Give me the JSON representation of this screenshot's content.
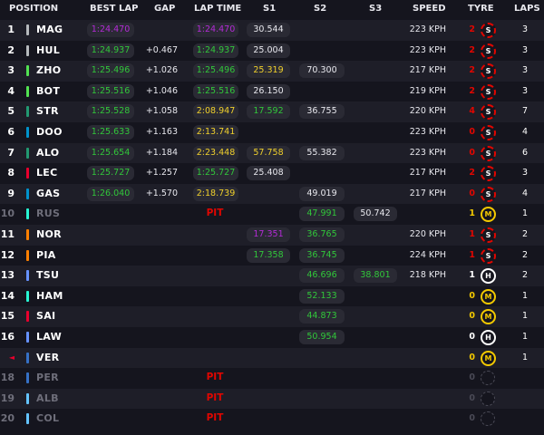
{
  "header": {
    "position": "POSITION",
    "best_lap": "BEST LAP",
    "gap": "GAP",
    "lap_time": "LAP TIME",
    "s1": "S1",
    "s2": "S2",
    "s3": "S3",
    "speed": "SPEED",
    "tyre": "TYRE",
    "laps": "LAPS"
  },
  "colors": {
    "purple": "#b32bd6",
    "green": "#31c73a",
    "yellow": "#f0d02c",
    "white": "#e8e8ee",
    "pit": "#e10600",
    "soft": "#e10600",
    "medium": "#f3c900",
    "hard": "#ffffff"
  },
  "rows": [
    {
      "pos": "1",
      "driver": "MAG",
      "team_color": "#b6babd",
      "best_lap": "1:24.470",
      "best_color": "purple",
      "gap": "",
      "lap_time": "1:24.470",
      "lap_color": "purple",
      "s1": "30.544",
      "s1_color": "white",
      "s2": "",
      "s2_color": "",
      "s3": "",
      "s3_color": "",
      "speed": "223 KPH",
      "tyre_age": "2",
      "tyre_age_color": "#e10600",
      "tyre": "S",
      "laps": "3"
    },
    {
      "pos": "2",
      "driver": "HUL",
      "team_color": "#b6babd",
      "best_lap": "1:24.937",
      "best_color": "green",
      "gap": "+0.467",
      "lap_time": "1:24.937",
      "lap_color": "green",
      "s1": "25.004",
      "s1_color": "white",
      "s2": "",
      "s2_color": "",
      "s3": "",
      "s3_color": "",
      "speed": "223 KPH",
      "tyre_age": "2",
      "tyre_age_color": "#e10600",
      "tyre": "S",
      "laps": "3"
    },
    {
      "pos": "3",
      "driver": "ZHO",
      "team_color": "#52e252",
      "best_lap": "1:25.496",
      "best_color": "green",
      "gap": "+1.026",
      "lap_time": "1:25.496",
      "lap_color": "green",
      "s1": "25.319",
      "s1_color": "yellow",
      "s2": "70.300",
      "s2_color": "white",
      "s3": "",
      "s3_color": "",
      "speed": "217 KPH",
      "tyre_age": "2",
      "tyre_age_color": "#e10600",
      "tyre": "S",
      "laps": "3"
    },
    {
      "pos": "4",
      "driver": "BOT",
      "team_color": "#52e252",
      "best_lap": "1:25.516",
      "best_color": "green",
      "gap": "+1.046",
      "lap_time": "1:25.516",
      "lap_color": "green",
      "s1": "26.150",
      "s1_color": "white",
      "s2": "",
      "s2_color": "",
      "s3": "",
      "s3_color": "",
      "speed": "219 KPH",
      "tyre_age": "2",
      "tyre_age_color": "#e10600",
      "tyre": "S",
      "laps": "3"
    },
    {
      "pos": "5",
      "driver": "STR",
      "team_color": "#229971",
      "best_lap": "1:25.528",
      "best_color": "green",
      "gap": "+1.058",
      "lap_time": "2:08.947",
      "lap_color": "yellow",
      "s1": "17.592",
      "s1_color": "green",
      "s2": "36.755",
      "s2_color": "white",
      "s3": "",
      "s3_color": "",
      "speed": "220 KPH",
      "tyre_age": "4",
      "tyre_age_color": "#e10600",
      "tyre": "S",
      "laps": "7"
    },
    {
      "pos": "6",
      "driver": "DOO",
      "team_color": "#0093cc",
      "best_lap": "1:25.633",
      "best_color": "green",
      "gap": "+1.163",
      "lap_time": "2:13.741",
      "lap_color": "yellow",
      "s1": "",
      "s1_color": "",
      "s2": "",
      "s2_color": "",
      "s3": "",
      "s3_color": "",
      "speed": "223 KPH",
      "tyre_age": "0",
      "tyre_age_color": "#e10600",
      "tyre": "S",
      "laps": "4"
    },
    {
      "pos": "7",
      "driver": "ALO",
      "team_color": "#229971",
      "best_lap": "1:25.654",
      "best_color": "green",
      "gap": "+1.184",
      "lap_time": "2:23.448",
      "lap_color": "yellow",
      "s1": "57.758",
      "s1_color": "yellow",
      "s2": "55.382",
      "s2_color": "white",
      "s3": "",
      "s3_color": "",
      "speed": "223 KPH",
      "tyre_age": "0",
      "tyre_age_color": "#e10600",
      "tyre": "S",
      "laps": "6"
    },
    {
      "pos": "8",
      "driver": "LEC",
      "team_color": "#e8002d",
      "best_lap": "1:25.727",
      "best_color": "green",
      "gap": "+1.257",
      "lap_time": "1:25.727",
      "lap_color": "green",
      "s1": "25.408",
      "s1_color": "white",
      "s2": "",
      "s2_color": "",
      "s3": "",
      "s3_color": "",
      "speed": "217 KPH",
      "tyre_age": "2",
      "tyre_age_color": "#e10600",
      "tyre": "S",
      "laps": "3"
    },
    {
      "pos": "9",
      "driver": "GAS",
      "team_color": "#0093cc",
      "best_lap": "1:26.040",
      "best_color": "green",
      "gap": "+1.570",
      "lap_time": "2:18.739",
      "lap_color": "yellow",
      "s1": "",
      "s1_color": "",
      "s2": "49.019",
      "s2_color": "white",
      "s3": "",
      "s3_color": "",
      "speed": "217 KPH",
      "tyre_age": "0",
      "tyre_age_color": "#e10600",
      "tyre": "S",
      "laps": "4"
    },
    {
      "pos": "10",
      "driver": "RUS",
      "team_color": "#27f4d2",
      "out": true,
      "best_lap": "",
      "best_color": "",
      "gap": "",
      "lap_time": "",
      "lap_color": "",
      "pit": "PIT",
      "s1": "",
      "s1_color": "",
      "s2": "47.991",
      "s2_color": "green",
      "s3": "50.742",
      "s3_color": "white",
      "speed": "",
      "tyre_age": "1",
      "tyre_age_color": "#f3c900",
      "tyre": "M",
      "laps": "1"
    },
    {
      "pos": "11",
      "driver": "NOR",
      "team_color": "#ff8000",
      "best_lap": "",
      "best_color": "",
      "gap": "",
      "lap_time": "",
      "lap_color": "",
      "s1": "17.351",
      "s1_color": "purple",
      "s2": "36.765",
      "s2_color": "green",
      "s3": "",
      "s3_color": "",
      "speed": "220 KPH",
      "tyre_age": "1",
      "tyre_age_color": "#e10600",
      "tyre": "S",
      "laps": "2"
    },
    {
      "pos": "12",
      "driver": "PIA",
      "team_color": "#ff8000",
      "best_lap": "",
      "best_color": "",
      "gap": "",
      "lap_time": "",
      "lap_color": "",
      "s1": "17.358",
      "s1_color": "green",
      "s2": "36.745",
      "s2_color": "green",
      "s3": "",
      "s3_color": "",
      "speed": "224 KPH",
      "tyre_age": "1",
      "tyre_age_color": "#e10600",
      "tyre": "S",
      "laps": "2"
    },
    {
      "pos": "13",
      "driver": "TSU",
      "team_color": "#6692ff",
      "best_lap": "",
      "best_color": "",
      "gap": "",
      "lap_time": "",
      "lap_color": "",
      "s1": "",
      "s1_color": "",
      "s2": "46.696",
      "s2_color": "green",
      "s3": "38.801",
      "s3_color": "green",
      "speed": "218 KPH",
      "tyre_age": "1",
      "tyre_age_color": "#ffffff",
      "tyre": "H",
      "laps": "2"
    },
    {
      "pos": "14",
      "driver": "HAM",
      "team_color": "#27f4d2",
      "best_lap": "",
      "best_color": "",
      "gap": "",
      "lap_time": "",
      "lap_color": "",
      "s1": "",
      "s1_color": "",
      "s2": "52.133",
      "s2_color": "green",
      "s3": "",
      "s3_color": "",
      "speed": "",
      "tyre_age": "0",
      "tyre_age_color": "#f3c900",
      "tyre": "M",
      "laps": "1"
    },
    {
      "pos": "15",
      "driver": "SAI",
      "team_color": "#e8002d",
      "best_lap": "",
      "best_color": "",
      "gap": "",
      "lap_time": "",
      "lap_color": "",
      "s1": "",
      "s1_color": "",
      "s2": "44.873",
      "s2_color": "green",
      "s3": "",
      "s3_color": "",
      "speed": "",
      "tyre_age": "0",
      "tyre_age_color": "#f3c900",
      "tyre": "M",
      "laps": "1"
    },
    {
      "pos": "16",
      "driver": "LAW",
      "team_color": "#6692ff",
      "best_lap": "",
      "best_color": "",
      "gap": "",
      "lap_time": "",
      "lap_color": "",
      "s1": "",
      "s1_color": "",
      "s2": "50.954",
      "s2_color": "green",
      "s3": "",
      "s3_color": "",
      "speed": "",
      "tyre_age": "0",
      "tyre_age_color": "#ffffff",
      "tyre": "H",
      "laps": "1"
    },
    {
      "pos": "◄",
      "pos_arrow": true,
      "driver": "VER",
      "team_color": "#3671c6",
      "best_lap": "",
      "best_color": "",
      "gap": "",
      "lap_time": "",
      "lap_color": "",
      "s1": "",
      "s1_color": "",
      "s2": "",
      "s2_color": "",
      "s3": "",
      "s3_color": "",
      "speed": "",
      "tyre_age": "0",
      "tyre_age_color": "#f3c900",
      "tyre": "M",
      "laps": "1"
    },
    {
      "pos": "18",
      "driver": "PER",
      "team_color": "#3671c6",
      "out": true,
      "best_lap": "",
      "best_color": "",
      "gap": "",
      "lap_time": "",
      "lap_color": "",
      "pit": "PIT",
      "s1": "",
      "s1_color": "",
      "s2": "",
      "s2_color": "",
      "s3": "",
      "s3_color": "",
      "speed": "",
      "tyre_age": "0",
      "tyre_age_color": "#4a4a56",
      "tyre": "U",
      "laps": ""
    },
    {
      "pos": "19",
      "driver": "ALB",
      "team_color": "#64c4ff",
      "out": true,
      "best_lap": "",
      "best_color": "",
      "gap": "",
      "lap_time": "",
      "lap_color": "",
      "pit": "PIT",
      "s1": "",
      "s1_color": "",
      "s2": "",
      "s2_color": "",
      "s3": "",
      "s3_color": "",
      "speed": "",
      "tyre_age": "0",
      "tyre_age_color": "#4a4a56",
      "tyre": "U",
      "laps": ""
    },
    {
      "pos": "20",
      "driver": "COL",
      "team_color": "#64c4ff",
      "out": true,
      "best_lap": "",
      "best_color": "",
      "gap": "",
      "lap_time": "",
      "lap_color": "",
      "pit": "PIT",
      "s1": "",
      "s1_color": "",
      "s2": "",
      "s2_color": "",
      "s3": "",
      "s3_color": "",
      "speed": "",
      "tyre_age": "0",
      "tyre_age_color": "#4a4a56",
      "tyre": "U",
      "laps": ""
    }
  ]
}
